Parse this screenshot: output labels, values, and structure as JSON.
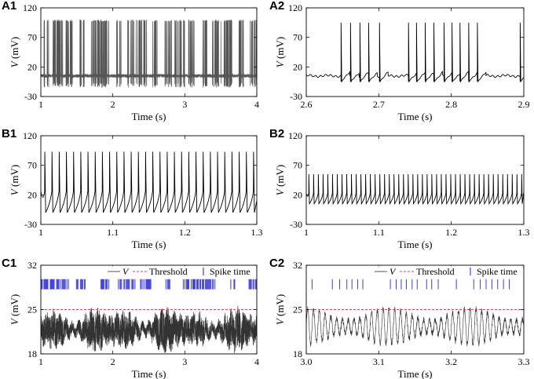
{
  "chart_data": [
    {
      "id": "A1",
      "type": "line",
      "label": "A1",
      "xlabel": "Time (s)",
      "ylabel_italic": "V",
      "ylabel_unit": " (mV)",
      "xlim": [
        1,
        4
      ],
      "ylim": [
        -30,
        120
      ],
      "xticks": [
        "1",
        "2",
        "3",
        "4"
      ],
      "yticks": [
        "-30",
        "20",
        "70",
        "120"
      ],
      "yticks_shown": [
        "-30",
        "20",
        "70",
        "120"
      ],
      "yticks_v": [
        -30,
        20,
        70,
        120
      ],
      "xticks_v": [
        1,
        2,
        3,
        4
      ],
      "series": [
        {
          "name": "V",
          "color": "#555555",
          "signal": "bursting-dense",
          "baseline": 5,
          "peak": 100,
          "trough": -15
        }
      ]
    },
    {
      "id": "A2",
      "type": "line",
      "label": "A2",
      "xlabel": "Time (s)",
      "ylabel_italic": "V",
      "ylabel_unit": " (mV)",
      "xlim": [
        2.6,
        2.9
      ],
      "ylim": [
        -30,
        120
      ],
      "xticks": [
        "2.6",
        "2.7",
        "2.8",
        "2.9"
      ],
      "yticks": [
        "-30",
        "20",
        "70",
        "120"
      ],
      "yticks_v": [
        -30,
        20,
        70,
        120
      ],
      "xticks_v": [
        2.6,
        2.7,
        2.8,
        2.9
      ],
      "series": [
        {
          "name": "V",
          "color": "#000000",
          "signal": "bursting",
          "spike_times": [
            2.648,
            2.661,
            2.674,
            2.686,
            2.701,
            2.741,
            2.752,
            2.764,
            2.776,
            2.79,
            2.801,
            2.812,
            2.824,
            2.836,
            2.895
          ],
          "baseline": 5,
          "peak": 95,
          "trough": -5
        }
      ]
    },
    {
      "id": "B1",
      "type": "line",
      "label": "B1",
      "xlabel": "Time (s)",
      "ylabel_italic": "V",
      "ylabel_unit": " (mV)",
      "xlim": [
        1,
        1.3
      ],
      "ylim": [
        -30,
        120
      ],
      "xticks": [
        "1",
        "1.1",
        "1.2",
        "1.3"
      ],
      "yticks": [
        "-30",
        "20",
        "70",
        "120"
      ],
      "yticks_v": [
        -30,
        20,
        70,
        120
      ],
      "xticks_v": [
        1,
        1.1,
        1.2,
        1.3
      ],
      "series": [
        {
          "name": "V",
          "color": "#000000",
          "signal": "tonic",
          "spike_count": 30,
          "peak": 93,
          "trough": -10
        }
      ]
    },
    {
      "id": "B2",
      "type": "line",
      "label": "B2",
      "xlabel": "Time (s)",
      "ylabel_italic": "V",
      "ylabel_unit": " (mV)",
      "xlim": [
        1,
        1.3
      ],
      "ylim": [
        -30,
        120
      ],
      "xticks": [
        "1",
        "1.1",
        "1.2",
        "1.3"
      ],
      "yticks": [
        "-30",
        "20",
        "70",
        "120"
      ],
      "yticks_v": [
        -30,
        20,
        70,
        120
      ],
      "xticks_v": [
        1,
        1.1,
        1.2,
        1.3
      ],
      "series": [
        {
          "name": "V",
          "color": "#000000",
          "signal": "tonic",
          "spike_count": 46,
          "peak": 55,
          "trough": 5
        }
      ]
    },
    {
      "id": "C1",
      "type": "line",
      "label": "C1",
      "xlabel": "Time (s)",
      "ylabel_italic": "V",
      "ylabel_unit": " (mV)",
      "xlim": [
        1,
        4
      ],
      "ylim": [
        18,
        32
      ],
      "xticks": [
        "1",
        "2",
        "3",
        "4"
      ],
      "yticks": [
        "18",
        "25",
        "32"
      ],
      "yticks_v": [
        18,
        25,
        32
      ],
      "xticks_v": [
        1,
        2,
        3,
        4
      ],
      "threshold": 25,
      "legend": {
        "v": "V",
        "threshold": "Threshold",
        "spike": "Spike time",
        "position": "top-right"
      },
      "series": [
        {
          "name": "V",
          "color": "#333333",
          "signal": "noisy",
          "mean": 21.8,
          "amp": 2.2
        },
        {
          "name": "Threshold",
          "color": "#e8474a",
          "dashed": true,
          "value": 25
        },
        {
          "name": "Spike time",
          "color": "#3f3fd9",
          "raster_y": [
            28.2,
            29.8
          ],
          "raster": "dense"
        }
      ]
    },
    {
      "id": "C2",
      "type": "line",
      "label": "C2",
      "xlabel": "Time (s)",
      "ylabel_italic": "V",
      "ylabel_unit": " (mV)",
      "xlim": [
        3.0,
        3.3
      ],
      "ylim": [
        18,
        32
      ],
      "xticks": [
        "3.0",
        "3.1",
        "3.2",
        "3.3"
      ],
      "yticks": [
        "18",
        "25",
        "32"
      ],
      "yticks_v": [
        18,
        25,
        32
      ],
      "xticks_v": [
        3.0,
        3.1,
        3.2,
        3.3
      ],
      "threshold": 25,
      "legend": {
        "v": "V",
        "threshold": "Threshold",
        "spike": "Spike time",
        "position": "top-right"
      },
      "series": [
        {
          "name": "V",
          "color": "#333333",
          "signal": "oscillation",
          "mean": 22.3,
          "amp": 2.6
        },
        {
          "name": "Threshold",
          "color": "#e8474a",
          "dashed": true,
          "value": 25
        },
        {
          "name": "Spike time",
          "color": "#3f3fd9",
          "raster_y": [
            28.2,
            29.8
          ],
          "spike_times": [
            3.008,
            3.036,
            3.046,
            3.056,
            3.063,
            3.071,
            3.078,
            3.116,
            3.124,
            3.131,
            3.138,
            3.146,
            3.153,
            3.166,
            3.173,
            3.182,
            3.207,
            3.231,
            3.24,
            3.248,
            3.256,
            3.264,
            3.272,
            3.28
          ]
        }
      ]
    }
  ]
}
